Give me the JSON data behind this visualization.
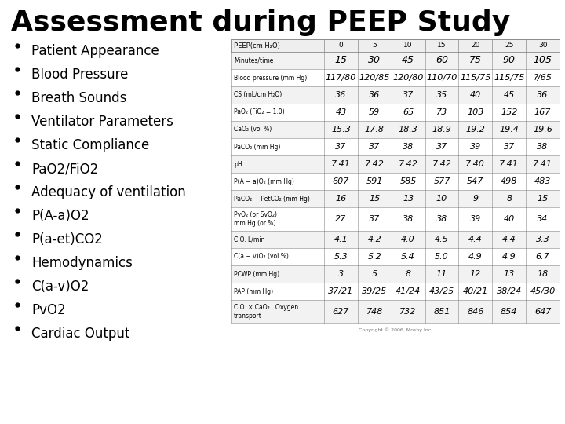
{
  "title": "Assessment during PEEP Study",
  "bullet_items": [
    "Patient Appearance",
    "Blood Pressure",
    "Breath Sounds",
    "Ventilator Parameters",
    "Static Compliance",
    "PaO2/FiO2",
    "Adequacy of ventilation",
    "P(A-a)O2",
    "P(a-et)CO2",
    "Hemodynamics",
    "C(a-v)O2",
    "PvO2",
    "Cardiac Output"
  ],
  "table_header": [
    "PEEP(cm H₂O)",
    "0",
    "5",
    "10",
    "15",
    "20",
    "25",
    "30"
  ],
  "table_rows": [
    [
      "Minutes/time",
      "15",
      "30",
      "45",
      "60",
      "75",
      "90",
      "105"
    ],
    [
      "Blood pressure (mm Hg)",
      "117/80",
      "120/85",
      "120/80",
      "110/70",
      "115/75",
      "115/75",
      "?/65"
    ],
    [
      "CS (mL/cm H₂O)",
      "36",
      "36",
      "37",
      "35",
      "40",
      "45",
      "36"
    ],
    [
      "PaO₂ (FiO₂ = 1.0)",
      "43",
      "59",
      "65",
      "73",
      "103",
      "152",
      "167"
    ],
    [
      "CaO₂ (vol %)",
      "15.3",
      "17.8",
      "18.3",
      "18.9",
      "19.2",
      "19.4",
      "19.6"
    ],
    [
      "PaCO₂ (mm Hg)",
      "37",
      "37",
      "38",
      "37",
      "39",
      "37",
      "38"
    ],
    [
      "pH",
      "7.41",
      "7.42",
      "7.42",
      "7.42",
      "7.40",
      "7.41",
      "7.41"
    ],
    [
      "P(A − a)O₂ (mm Hg)",
      "607",
      "591",
      "585",
      "577",
      "547",
      "498",
      "483"
    ],
    [
      "PaCO₂ − PetCO₂ (mm Hg)",
      "16",
      "15",
      "13",
      "10",
      "9",
      "8",
      "15"
    ],
    [
      "PvO₂ (or SvO₂)\nmm Hg (or %)",
      "27",
      "37",
      "38",
      "38",
      "39",
      "40",
      "34"
    ],
    [
      "C.O. L/min",
      "4.1",
      "4.2",
      "4.0",
      "4.5",
      "4.4",
      "4.4",
      "3.3"
    ],
    [
      "C(a − v)O₂ (vol %)",
      "5.3",
      "5.2",
      "5.4",
      "5.0",
      "4.9",
      "4.9",
      "6.7"
    ],
    [
      "PCWP (mm Hg)",
      "3",
      "5",
      "8",
      "11",
      "12",
      "13",
      "18"
    ],
    [
      "PAP (mm Hg)",
      "37/21",
      "39/25",
      "41/24",
      "43/25",
      "40/21",
      "38/24",
      "45/30"
    ],
    [
      "C.O. × CaO₂   Oxygen\ntransport",
      "627",
      "748",
      "732",
      "851",
      "846",
      "854",
      "647"
    ]
  ],
  "background_color": "#ffffff",
  "title_fontsize": 26,
  "bullet_fontsize": 12,
  "copyright_text": "Copyright © 2006, Mosby Inc."
}
